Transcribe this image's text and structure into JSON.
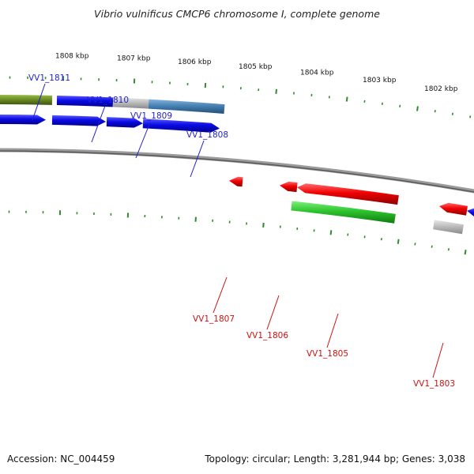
{
  "title": "Vibrio vulnificus CMCP6 chromosome I, complete genome",
  "accession": {
    "label": "Accession:",
    "value": "NC_004459"
  },
  "summary": {
    "text": "Topology: circular; Length: 3,281,944 bp; Genes: 3,038"
  },
  "ticks": [
    "1808 kbp",
    "1807 kbp",
    "1806 kbp",
    "1805 kbp",
    "1804 kbp",
    "1803 kbp",
    "1802 kbp"
  ],
  "genes_forward": [
    "VV1_1811",
    "VV1_1810",
    "VV1_1809",
    "VV1_1808"
  ],
  "genes_reverse": [
    "VV1_1807",
    "VV1_1806",
    "VV1_1805",
    "VV1_1803"
  ],
  "colors": {
    "forward_label": "#1f1fd0",
    "reverse_label": "#d01010",
    "tick": "#2e8b2e",
    "backbone": "#7a7a7a",
    "cds_forward": "#0a0ae6",
    "cds_reverse": "#f00000",
    "gene_olive": "#6b8e23",
    "gene_steel": "#4682b4",
    "gene_gray": "#bdbdbd",
    "gene_green": "#2ec42e"
  }
}
